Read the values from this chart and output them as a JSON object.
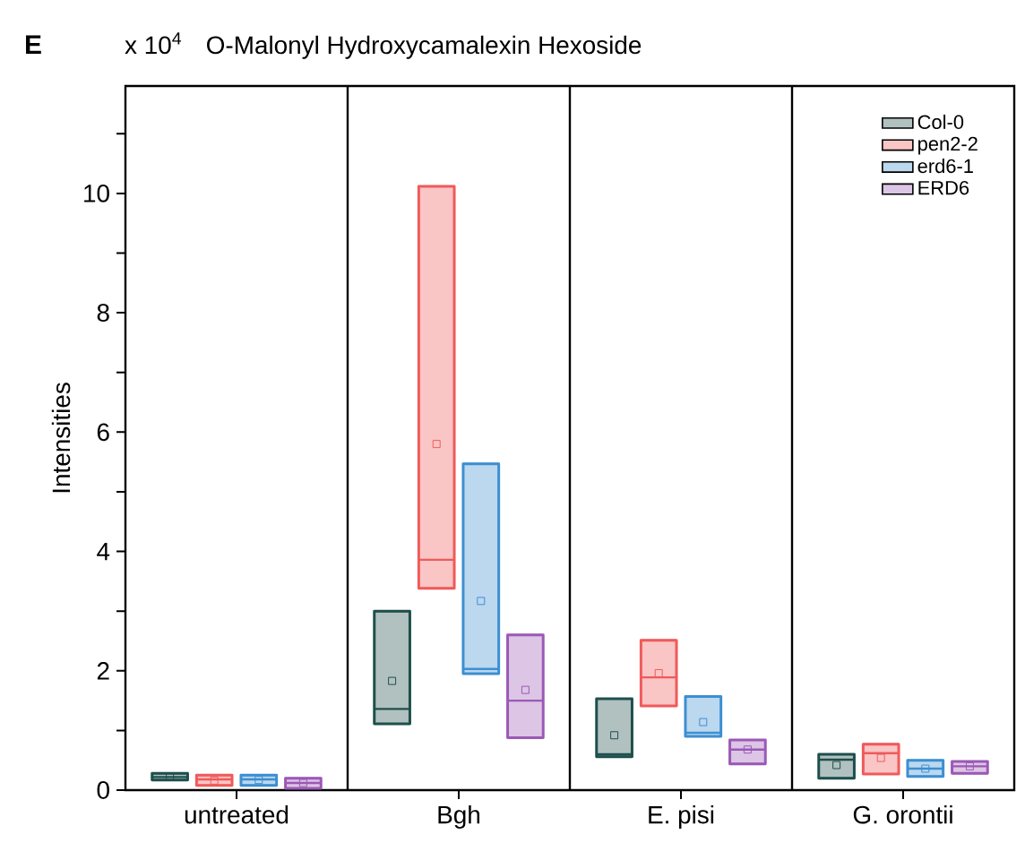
{
  "chart_data": {
    "type": "box",
    "title": "O-Malonyl Hydroxycamalexin Hexoside",
    "ylabel": "Intensities",
    "annotations": [
      "E",
      "x 10$^{4}$"
    ],
    "categories": [
      "untreated",
      "Bgh",
      "E. pisi",
      "G. orontii"
    ],
    "ylim": [
      0,
      11.8
    ],
    "yticks": [
      0,
      {
        "value": 1,
        "label": null
      },
      2,
      {
        "value": 3,
        "label": null
      },
      4,
      {
        "value": 5,
        "label": null
      },
      6,
      {
        "value": 7,
        "label": null
      },
      8,
      {
        "value": 9,
        "label": null
      },
      10,
      {
        "value": 11,
        "label": null
      }
    ],
    "legend": "top right",
    "grid": false,
    "series": [
      {
        "name": "Col-0",
        "color": "#1e4f4c",
        "boxes": [
          {
            "low": 0.17,
            "q1": 0.17,
            "median": 0.22,
            "q3": 0.28,
            "high": 0.28,
            "mean": 0.22
          },
          {
            "low": 1.11,
            "q1": 1.11,
            "median": 1.36,
            "q3": 3.0,
            "high": 3.0,
            "mean": 1.83
          },
          {
            "low": 0.56,
            "q1": 0.56,
            "median": 0.6,
            "q3": 1.53,
            "high": 1.53,
            "mean": 0.92
          },
          {
            "low": 0.2,
            "q1": 0.2,
            "median": 0.51,
            "q3": 0.6,
            "high": 0.6,
            "mean": 0.42
          }
        ]
      },
      {
        "name": "pen2-2",
        "color": "#f05a5a",
        "boxes": [
          {
            "low": 0.08,
            "q1": 0.08,
            "median": 0.18,
            "q3": 0.25,
            "high": 0.25,
            "mean": 0.16
          },
          {
            "low": 3.38,
            "q1": 3.38,
            "median": 3.86,
            "q3": 10.12,
            "high": 10.12,
            "mean": 5.8
          },
          {
            "low": 1.41,
            "q1": 1.41,
            "median": 1.89,
            "q3": 2.51,
            "high": 2.51,
            "mean": 1.96
          },
          {
            "low": 0.27,
            "q1": 0.27,
            "median": 0.62,
            "q3": 0.77,
            "high": 0.77,
            "mean": 0.54
          }
        ]
      },
      {
        "name": "erd6-1",
        "color": "#3d8fd1",
        "boxes": [
          {
            "low": 0.08,
            "q1": 0.08,
            "median": 0.18,
            "q3": 0.25,
            "high": 0.25,
            "mean": 0.17
          },
          {
            "low": 1.95,
            "q1": 1.95,
            "median": 2.03,
            "q3": 5.47,
            "high": 5.47,
            "mean": 3.17
          },
          {
            "low": 0.9,
            "q1": 0.9,
            "median": 0.96,
            "q3": 1.57,
            "high": 1.57,
            "mean": 1.14
          },
          {
            "low": 0.23,
            "q1": 0.23,
            "median": 0.36,
            "q3": 0.5,
            "high": 0.5,
            "mean": 0.36
          }
        ]
      },
      {
        "name": "ERD6",
        "color": "#9b59b6",
        "boxes": [
          {
            "low": 0.03,
            "q1": 0.03,
            "median": 0.12,
            "q3": 0.2,
            "high": 0.2,
            "mean": 0.12
          },
          {
            "low": 0.88,
            "q1": 0.88,
            "median": 1.5,
            "q3": 2.6,
            "high": 2.6,
            "mean": 1.68
          },
          {
            "low": 0.44,
            "q1": 0.44,
            "median": 0.68,
            "q3": 0.84,
            "high": 0.84,
            "mean": 0.68
          },
          {
            "low": 0.28,
            "q1": 0.28,
            "median": 0.4,
            "q3": 0.48,
            "high": 0.48,
            "mean": 0.4
          }
        ]
      }
    ]
  }
}
